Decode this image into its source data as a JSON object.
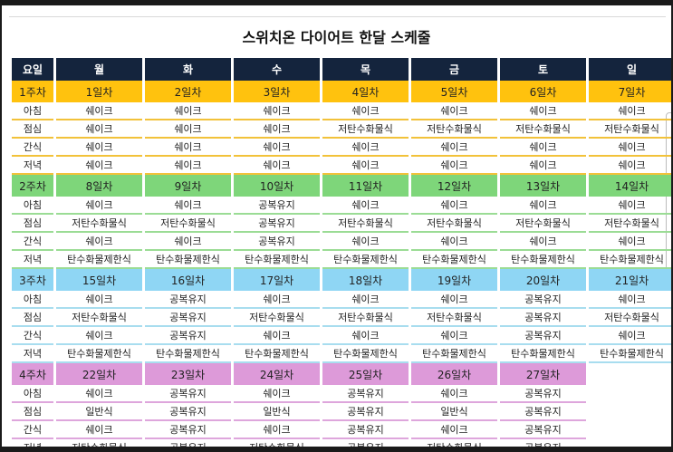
{
  "title": "스위치온 다이어트 한달 스케줄",
  "header": [
    "요일",
    "월",
    "화",
    "수",
    "목",
    "금",
    "토",
    "일"
  ],
  "weeks": [
    {
      "label": "1주차",
      "days": [
        "1일차",
        "2일차",
        "3일차",
        "4일차",
        "5일차",
        "6일차",
        "7일차"
      ],
      "meals": [
        {
          "label": "아침",
          "cells": [
            "쉐이크",
            "쉐이크",
            "쉐이크",
            "쉐이크",
            "쉐이크",
            "쉐이크",
            "쉐이크"
          ]
        },
        {
          "label": "점심",
          "cells": [
            "쉐이크",
            "쉐이크",
            "쉐이크",
            "저탄수화물식",
            "저탄수화물식",
            "저탄수화물식",
            "저탄수화물식"
          ]
        },
        {
          "label": "간식",
          "cells": [
            "쉐이크",
            "쉐이크",
            "쉐이크",
            "쉐이크",
            "쉐이크",
            "쉐이크",
            "쉐이크"
          ]
        },
        {
          "label": "저녁",
          "cells": [
            "쉐이크",
            "쉐이크",
            "쉐이크",
            "쉐이크",
            "쉐이크",
            "쉐이크",
            "쉐이크"
          ]
        }
      ]
    },
    {
      "label": "2주차",
      "days": [
        "8일차",
        "9일차",
        "10일차",
        "11일차",
        "12일차",
        "13일차",
        "14일차"
      ],
      "meals": [
        {
          "label": "아침",
          "cells": [
            "쉐이크",
            "쉐이크",
            "공복유지",
            "쉐이크",
            "쉐이크",
            "쉐이크",
            "쉐이크"
          ]
        },
        {
          "label": "점심",
          "cells": [
            "저탄수화물식",
            "저탄수화물식",
            "공복유지",
            "저탄수화물식",
            "저탄수화물식",
            "저탄수화물식",
            "저탄수화물식"
          ]
        },
        {
          "label": "간식",
          "cells": [
            "쉐이크",
            "쉐이크",
            "공복유지",
            "쉐이크",
            "쉐이크",
            "쉐이크",
            "쉐이크"
          ]
        },
        {
          "label": "저녁",
          "cells": [
            "탄수화물제한식",
            "탄수화물제한식",
            "탄수화물제한식",
            "탄수화물제한식",
            "탄수화물제한식",
            "탄수화물제한식",
            "탄수화물제한식"
          ]
        }
      ]
    },
    {
      "label": "3주차",
      "days": [
        "15일차",
        "16일차",
        "17일차",
        "18일차",
        "19일차",
        "20일차",
        "21일차"
      ],
      "meals": [
        {
          "label": "아침",
          "cells": [
            "쉐이크",
            "공복유지",
            "쉐이크",
            "쉐이크",
            "쉐이크",
            "공복유지",
            "쉐이크"
          ]
        },
        {
          "label": "점심",
          "cells": [
            "저탄수화물식",
            "공복유지",
            "저탄수화물식",
            "저탄수화물식",
            "저탄수화물식",
            "공복유지",
            "저탄수화물식"
          ]
        },
        {
          "label": "간식",
          "cells": [
            "쉐이크",
            "공복유지",
            "쉐이크",
            "쉐이크",
            "쉐이크",
            "공복유지",
            "쉐이크"
          ]
        },
        {
          "label": "저녁",
          "cells": [
            "탄수화물제한식",
            "탄수화물제한식",
            "탄수화물제한식",
            "탄수화물제한식",
            "탄수화물제한식",
            "탄수화물제한식",
            "탄수화물제한식"
          ]
        }
      ]
    },
    {
      "label": "4주차",
      "days": [
        "22일차",
        "23일차",
        "24일차",
        "25일차",
        "26일차",
        "27일차"
      ],
      "meals": [
        {
          "label": "아침",
          "cells": [
            "쉐이크",
            "공복유지",
            "쉐이크",
            "공복유지",
            "쉐이크",
            "공복유지"
          ]
        },
        {
          "label": "점심",
          "cells": [
            "일반식",
            "공복유지",
            "일반식",
            "공복유지",
            "일반식",
            "공복유지"
          ]
        },
        {
          "label": "간식",
          "cells": [
            "쉐이크",
            "공복유지",
            "쉐이크",
            "공복유지",
            "쉐이크",
            "공복유지"
          ]
        },
        {
          "label": "저녁",
          "cells": [
            "저탄수화물식",
            "공복유지",
            "저탄수화물식",
            "공복유지",
            "저탄수화물식",
            "공복유지"
          ]
        }
      ]
    }
  ]
}
